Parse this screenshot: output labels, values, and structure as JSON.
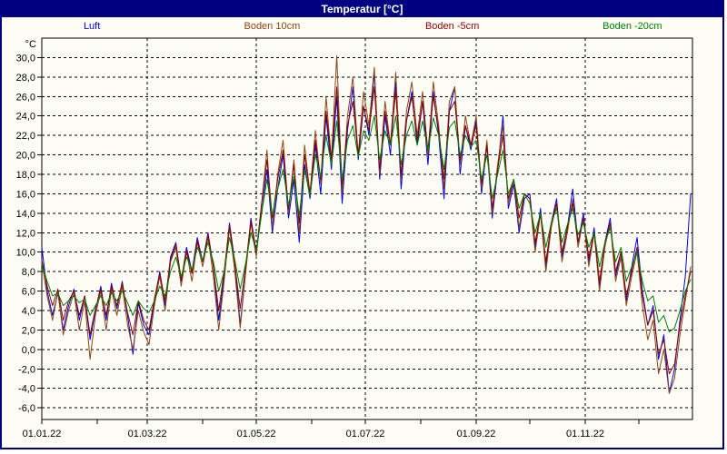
{
  "window": {
    "title": "Temperatur [°C]"
  },
  "colors": {
    "title_bar": "#000080",
    "title_text": "#ffffff",
    "window_border": "#000080",
    "background": "#fdfdf6",
    "frame": "#000000",
    "grid": "#000000",
    "tick_text": "#000000"
  },
  "legend": [
    {
      "label": "Luft",
      "color": "#0000dd"
    },
    {
      "label": "Boden 10cm",
      "color": "#8b4513"
    },
    {
      "label": "Boden -5cm",
      "color": "#8b0000"
    },
    {
      "label": "Boden -20cm",
      "color": "#008000"
    }
  ],
  "chart_data": {
    "type": "line",
    "title": "Temperatur [°C]",
    "unit_label": "°C",
    "grid": "dashed",
    "legend_position": "top",
    "y_axis": {
      "visual_max": 32.0,
      "visual_min": -7.2,
      "ticks": [
        {
          "v": 30,
          "label": "30,0"
        },
        {
          "v": 28,
          "label": "28,0"
        },
        {
          "v": 26,
          "label": "26,0"
        },
        {
          "v": 24,
          "label": "24,0"
        },
        {
          "v": 22,
          "label": "22,0"
        },
        {
          "v": 20,
          "label": "20,0"
        },
        {
          "v": 18,
          "label": "18,0"
        },
        {
          "v": 16,
          "label": "16,0"
        },
        {
          "v": 14,
          "label": "14,0"
        },
        {
          "v": 12,
          "label": "12,0"
        },
        {
          "v": 10,
          "label": "10,0"
        },
        {
          "v": 8,
          "label": "8,0"
        },
        {
          "v": 6,
          "label": "6,0"
        },
        {
          "v": 4,
          "label": "4,0"
        },
        {
          "v": 2,
          "label": "2,0"
        },
        {
          "v": 0,
          "label": "0,0"
        },
        {
          "v": -2,
          "label": "-2,0"
        },
        {
          "v": -4,
          "label": "-4,0"
        },
        {
          "v": -6,
          "label": "-6,0"
        }
      ]
    },
    "x_axis": {
      "days_total": 364,
      "month_tick_days": [
        0,
        31,
        59,
        90,
        120,
        151,
        181,
        212,
        243,
        273,
        304,
        334
      ],
      "gridline_days": [
        59,
        120,
        181,
        243,
        304
      ],
      "labels": [
        {
          "label": "01.01.22",
          "day": 0
        },
        {
          "label": "01.03.22",
          "day": 59
        },
        {
          "label": "01.05.22",
          "day": 120
        },
        {
          "label": "01.07.22",
          "day": 181
        },
        {
          "label": "01.09.22",
          "day": 243
        },
        {
          "label": "01.11.22",
          "day": 304
        }
      ]
    },
    "sample_step_days": 3,
    "series": [
      {
        "name": "Luft",
        "color": "#0000dd",
        "values": [
          10.5,
          6.0,
          3.5,
          5.8,
          2.0,
          4.5,
          6.2,
          3.0,
          5.5,
          1.0,
          4.0,
          6.5,
          3.0,
          6.8,
          4.2,
          7.0,
          3.5,
          -0.5,
          4.8,
          2.5,
          1.5,
          5.0,
          8.0,
          4.5,
          9.5,
          11.0,
          7.0,
          10.5,
          8.0,
          11.5,
          9.0,
          12.0,
          8.5,
          3.0,
          7.5,
          13.0,
          9.0,
          2.5,
          8.0,
          13.5,
          10.0,
          14.0,
          18.5,
          12.0,
          16.5,
          20.0,
          13.5,
          17.5,
          11.0,
          19.0,
          15.5,
          21.0,
          16.0,
          24.0,
          18.5,
          26.0,
          15.0,
          22.5,
          27.0,
          19.5,
          25.0,
          22.0,
          28.5,
          17.5,
          24.0,
          20.0,
          27.5,
          16.5,
          23.5,
          26.5,
          21.0,
          25.5,
          19.0,
          26.5,
          22.0,
          15.5,
          24.5,
          27.0,
          18.0,
          23.0,
          20.5,
          23.5,
          16.0,
          21.0,
          13.5,
          18.5,
          24.0,
          14.5,
          17.0,
          12.0,
          15.5,
          16.0,
          10.5,
          14.5,
          8.5,
          13.0,
          15.5,
          9.5,
          12.5,
          16.5,
          11.0,
          14.0,
          9.0,
          12.5,
          6.5,
          11.0,
          13.5,
          7.5,
          10.0,
          5.0,
          8.5,
          11.5,
          6.0,
          2.5,
          4.5,
          -1.0,
          1.5,
          -4.5,
          -2.0,
          3.0,
          7.5,
          16.0
        ]
      },
      {
        "name": "Boden 10cm",
        "color": "#8b4513",
        "values": [
          9.0,
          5.5,
          3.0,
          6.0,
          1.5,
          4.0,
          5.8,
          2.0,
          5.0,
          -1.0,
          3.5,
          6.0,
          2.0,
          6.2,
          3.5,
          6.5,
          2.5,
          0.0,
          4.0,
          1.8,
          0.5,
          4.5,
          7.5,
          4.0,
          9.0,
          10.5,
          6.5,
          10.0,
          7.0,
          11.0,
          8.5,
          11.5,
          7.5,
          2.0,
          7.0,
          12.5,
          8.0,
          2.2,
          7.8,
          13.0,
          9.5,
          15.0,
          20.5,
          12.5,
          18.0,
          21.5,
          14.0,
          19.5,
          12.0,
          21.0,
          16.0,
          22.5,
          17.0,
          26.0,
          19.5,
          30.2,
          16.0,
          24.0,
          28.0,
          20.0,
          26.5,
          23.0,
          29.0,
          18.0,
          25.5,
          21.0,
          28.5,
          17.5,
          24.5,
          27.5,
          22.0,
          26.5,
          20.0,
          27.5,
          23.0,
          16.5,
          25.5,
          27.0,
          19.0,
          24.0,
          21.0,
          24.0,
          16.5,
          21.5,
          14.0,
          19.0,
          23.0,
          15.0,
          17.5,
          12.5,
          16.0,
          15.5,
          10.0,
          14.0,
          8.0,
          12.5,
          15.0,
          9.0,
          12.0,
          15.5,
          10.5,
          13.5,
          8.5,
          12.0,
          6.0,
          10.5,
          13.0,
          7.0,
          9.5,
          4.5,
          7.5,
          10.0,
          4.5,
          1.0,
          3.0,
          -2.5,
          0.0,
          -4.5,
          -3.0,
          1.5,
          5.0,
          8.5
        ]
      },
      {
        "name": "Boden -5cm",
        "color": "#8b0000",
        "values": [
          9.2,
          6.5,
          4.5,
          6.2,
          3.0,
          5.0,
          6.0,
          3.5,
          5.5,
          1.5,
          4.2,
          6.2,
          3.5,
          6.5,
          4.5,
          6.8,
          3.8,
          1.5,
          5.0,
          3.0,
          2.0,
          5.2,
          7.8,
          5.0,
          9.2,
          10.8,
          7.2,
          10.2,
          7.8,
          11.2,
          9.0,
          11.8,
          8.5,
          4.0,
          8.0,
          12.8,
          8.8,
          4.2,
          8.5,
          13.2,
          10.0,
          15.0,
          19.5,
          13.5,
          17.5,
          20.5,
          14.5,
          19.0,
          13.0,
          20.0,
          16.0,
          21.5,
          17.5,
          24.5,
          19.5,
          27.0,
          17.0,
          23.0,
          25.5,
          20.0,
          25.0,
          22.5,
          27.0,
          18.5,
          24.5,
          21.0,
          26.5,
          18.0,
          23.5,
          26.0,
          21.5,
          25.5,
          20.5,
          26.0,
          22.5,
          17.5,
          24.5,
          25.5,
          19.5,
          23.0,
          21.0,
          23.0,
          17.0,
          21.0,
          14.5,
          18.5,
          22.0,
          15.5,
          17.5,
          13.5,
          16.0,
          15.5,
          11.0,
          14.0,
          9.0,
          13.0,
          15.0,
          10.0,
          12.5,
          15.0,
          11.0,
          13.5,
          9.5,
          12.0,
          7.0,
          11.0,
          13.0,
          8.0,
          10.0,
          5.5,
          8.0,
          10.5,
          5.5,
          2.5,
          4.0,
          -0.5,
          1.0,
          -2.5,
          -1.5,
          2.5,
          5.5,
          8.0
        ]
      },
      {
        "name": "Boden -20cm",
        "color": "#008000",
        "values": [
          8.8,
          7.0,
          5.5,
          5.8,
          4.5,
          5.0,
          5.5,
          4.8,
          5.2,
          3.5,
          4.5,
          5.5,
          4.5,
          5.8,
          5.0,
          6.0,
          4.8,
          3.5,
          5.0,
          4.2,
          3.8,
          5.0,
          6.5,
          5.5,
          8.0,
          9.5,
          7.5,
          9.5,
          8.2,
          10.5,
          9.2,
          11.0,
          9.0,
          6.0,
          8.0,
          11.5,
          9.2,
          6.2,
          8.8,
          12.0,
          10.2,
          14.0,
          17.5,
          13.8,
          16.5,
          18.5,
          14.8,
          17.8,
          13.8,
          18.5,
          15.8,
          20.0,
          17.8,
          22.0,
          19.0,
          23.5,
          17.5,
          21.5,
          23.0,
          19.8,
          22.5,
          21.5,
          24.0,
          19.5,
          22.5,
          21.0,
          24.0,
          19.0,
          22.0,
          23.5,
          21.0,
          23.5,
          20.5,
          23.8,
          22.0,
          18.5,
          22.8,
          23.5,
          20.0,
          22.0,
          20.8,
          21.5,
          17.5,
          20.0,
          15.5,
          18.0,
          20.5,
          16.0,
          17.5,
          14.5,
          16.0,
          15.0,
          12.0,
          14.0,
          10.5,
          13.0,
          14.5,
          11.0,
          12.8,
          14.5,
          11.8,
          13.0,
          10.5,
          12.0,
          8.5,
          11.0,
          12.5,
          9.0,
          10.5,
          7.0,
          8.5,
          10.0,
          7.0,
          5.0,
          5.5,
          2.8,
          3.5,
          1.8,
          2.2,
          4.0,
          6.0,
          7.2
        ]
      }
    ]
  }
}
